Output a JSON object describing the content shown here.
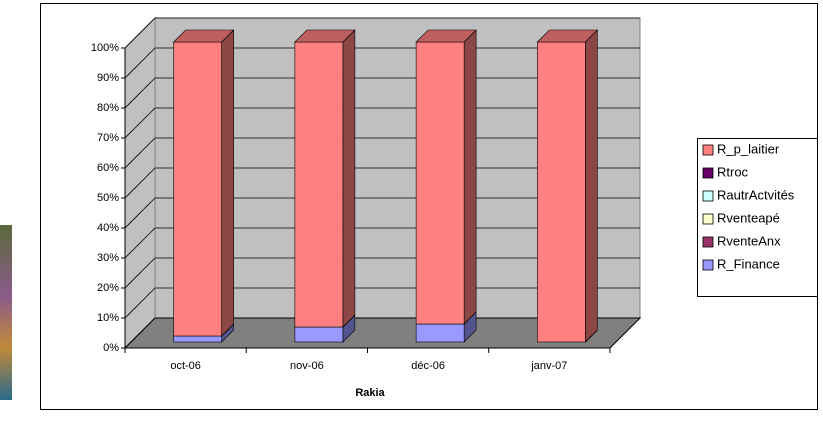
{
  "chart_data": {
    "type": "bar",
    "stacked": "percent",
    "x_label": "Rakia",
    "categories": [
      "oct-06",
      "nov-06",
      "déc-06",
      "janv-07"
    ],
    "series": [
      {
        "name": "R_Finance",
        "color": "#9999FF",
        "values": [
          2,
          5,
          6,
          0
        ]
      },
      {
        "name": "RventeAnx",
        "color": "#993366",
        "values": [
          0,
          0,
          0,
          0
        ]
      },
      {
        "name": "Rventeapé",
        "color": "#FFFFCC",
        "values": [
          0,
          0,
          0,
          0
        ]
      },
      {
        "name": "RautrActvités",
        "color": "#CCFFFF",
        "values": [
          0,
          0,
          0,
          0
        ]
      },
      {
        "name": "Rtroc",
        "color": "#660066",
        "values": [
          0,
          0,
          0,
          0
        ]
      },
      {
        "name": "R_p_laitier",
        "color": "#FF8080",
        "values": [
          98,
          95,
          94,
          100
        ]
      }
    ],
    "ylim": [
      0,
      100
    ],
    "yticks": [
      {
        "value": 0,
        "label": "0%"
      },
      {
        "value": 10,
        "label": "10%"
      },
      {
        "value": 20,
        "label": "20%"
      },
      {
        "value": 30,
        "label": "30%"
      },
      {
        "value": 40,
        "label": "40%"
      },
      {
        "value": 50,
        "label": "50%"
      },
      {
        "value": 60,
        "label": "60%"
      },
      {
        "value": 70,
        "label": "70%"
      },
      {
        "value": 80,
        "label": "80%"
      },
      {
        "value": 90,
        "label": "90%"
      },
      {
        "value": 100,
        "label": "100%"
      }
    ],
    "grid": true,
    "legend": "right"
  }
}
